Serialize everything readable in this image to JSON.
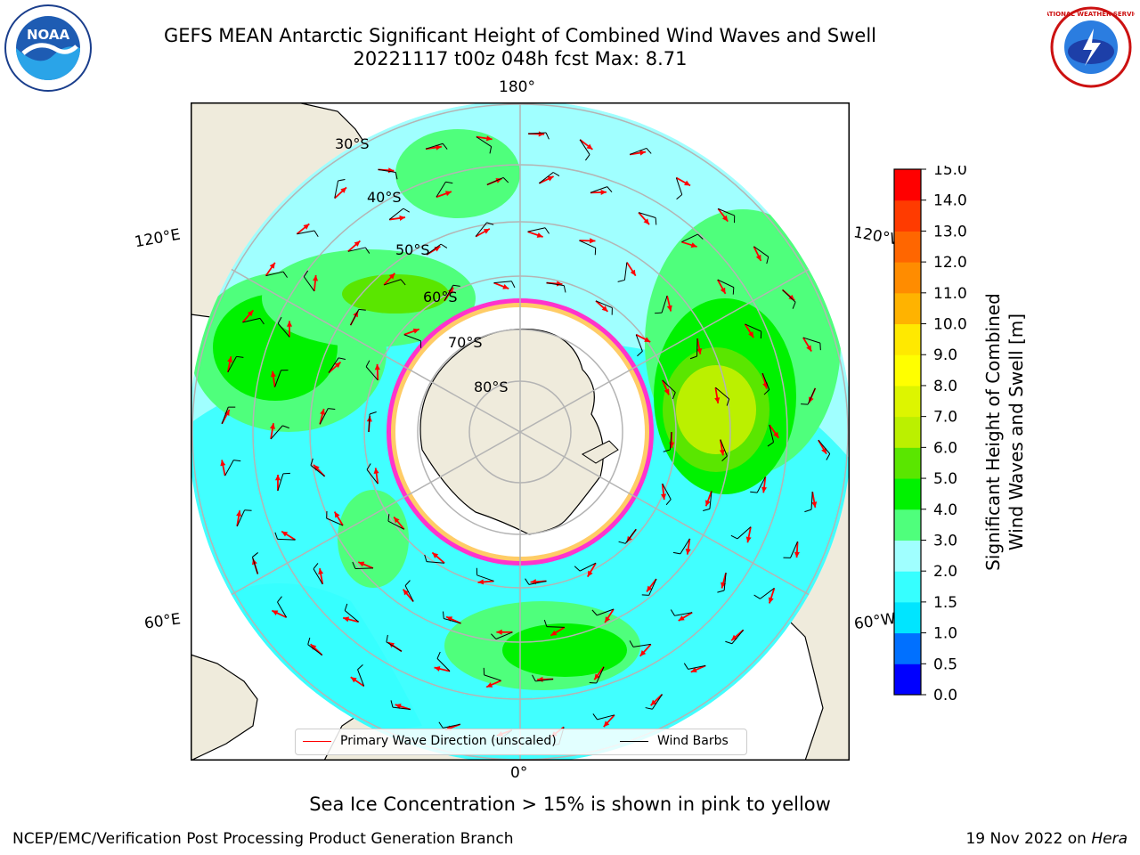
{
  "title": {
    "line1": "GEFS MEAN Antarctic Significant Height of Combined Wind Waves and Swell",
    "line2": "20221117 t00z 048h fcst   Max: 8.71"
  },
  "map": {
    "projection": "south-polar-stereographic",
    "longitude_labels": {
      "top": "180°",
      "bottom": "0°",
      "left_upper": "120°E",
      "left_lower": "60°E",
      "right_upper": "120°W",
      "right_lower": "60°W"
    },
    "latitude_labels": [
      "30°S",
      "40°S",
      "50°S",
      "60°S",
      "70°S",
      "80°S"
    ],
    "colors": {
      "land": "#efebdc",
      "coast": "#000000",
      "grid": "#b4b4b4",
      "wave_arrow": "#ff0000",
      "wind_barb": "#000000",
      "ice_edge": [
        "#ff33cc",
        "#ffcc66"
      ]
    }
  },
  "legend": {
    "primary_wave_direction": "Primary Wave Direction (unscaled)",
    "wind_barbs": "Wind Barbs"
  },
  "colorbar": {
    "label_line1": "Significant Height of Combined",
    "label_line2": "Wind Waves and Swell [m]",
    "ticks": [
      "0.0",
      "0.5",
      "1.0",
      "1.5",
      "2.0",
      "3.0",
      "4.0",
      "5.0",
      "6.0",
      "7.0",
      "8.0",
      "9.0",
      "10.0",
      "11.0",
      "12.0",
      "13.0",
      "14.0",
      "15.0"
    ],
    "colors": [
      "#0000ff",
      "#0070ff",
      "#00e5ff",
      "#36ffff",
      "#a0ffff",
      "#4fff7c",
      "#00f200",
      "#5ae600",
      "#bbf000",
      "#ddf500",
      "#ffff00",
      "#ffe900",
      "#ffb300",
      "#ff8c00",
      "#ff6600",
      "#ff3b00",
      "#ff0000"
    ]
  },
  "ice_note": "Sea Ice Concentration > 15% is shown in pink to yellow",
  "footer": {
    "left": "NCEP/EMC/Verification Post Processing Product Generation Branch",
    "right_prefix": "19 Nov 2022 on ",
    "right_machine": "Hera"
  },
  "logos": {
    "noaa": "NOAA",
    "nws": "NATIONAL WEATHER SERVICE"
  }
}
